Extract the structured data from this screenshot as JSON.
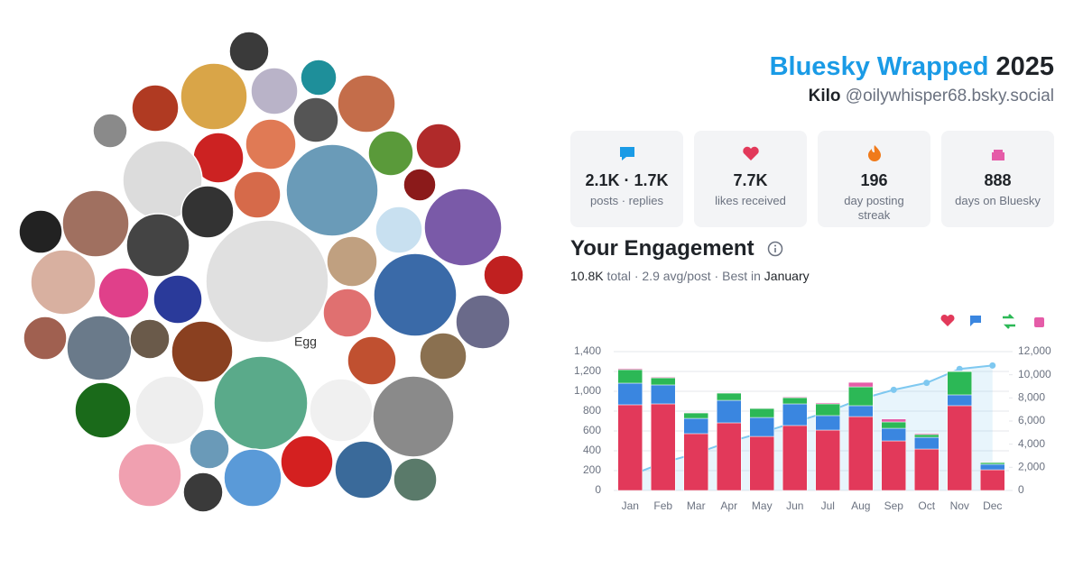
{
  "header": {
    "title": "Bluesky Wrapped",
    "year": "2025",
    "display_name": "Kilo",
    "handle": "@oilywhisper68.bsky.social"
  },
  "avatar_alt": "Egg",
  "stats": [
    {
      "value": "2.1K · 1.7K",
      "label": "posts · replies"
    },
    {
      "value": "7.7K",
      "label": "likes received"
    },
    {
      "value": "196",
      "label": "day posting streak"
    },
    {
      "value": "888",
      "label": "days on Bluesky"
    }
  ],
  "engagement": {
    "title": "Your Engagement",
    "total": "10.8K",
    "middle": "total · 2.9 avg/post · Best in",
    "best": "January"
  },
  "chart_data": {
    "type": "bar",
    "stacked": true,
    "categories": [
      "Jan",
      "Feb",
      "Mar",
      "Apr",
      "May",
      "Jun",
      "Jul",
      "Aug",
      "Sep",
      "Oct",
      "Nov",
      "Dec"
    ],
    "series": [
      {
        "color": "#e2395a",
        "values": [
          864,
          873,
          573,
          682,
          545,
          655,
          609,
          745,
          500,
          418,
          855,
          209
        ]
      },
      {
        "color": "#3a86e0",
        "values": [
          218,
          191,
          154,
          227,
          191,
          218,
          146,
          110,
          127,
          118,
          109,
          55
        ]
      },
      {
        "color": "#2cb856",
        "values": [
          136,
          72,
          55,
          73,
          91,
          63,
          118,
          190,
          64,
          28,
          236,
          18
        ]
      },
      {
        "color": "#e55ca8",
        "values": [
          10,
          8,
          5,
          5,
          5,
          8,
          10,
          45,
          30,
          10,
          5,
          5
        ]
      },
      {
        "color": "#7ec8f0",
        "type": "line",
        "axis": "y2",
        "values": [
          1300,
          2400,
          3200,
          4200,
          5000,
          5900,
          6800,
          7900,
          8700,
          9300,
          10500,
          10800
        ]
      }
    ],
    "ylim": [
      0,
      1400
    ],
    "yticks": [
      0,
      200,
      400,
      600,
      800,
      {
        "value": 1000,
        "label": "1,000"
      },
      {
        "value": 1200,
        "label": "1,200"
      },
      {
        "value": 1400,
        "label": "1,400"
      }
    ],
    "y2lim": [
      0,
      12000
    ],
    "y2ticks": [
      0,
      {
        "value": 2000,
        "label": "2,000"
      },
      {
        "value": 4000,
        "label": "4,000"
      },
      {
        "value": 6000,
        "label": "6,000"
      },
      {
        "value": 8000,
        "label": "8,000"
      },
      {
        "value": 10000,
        "label": "10,000"
      },
      {
        "value": 12000,
        "label": "12,000"
      }
    ],
    "grid": true
  }
}
